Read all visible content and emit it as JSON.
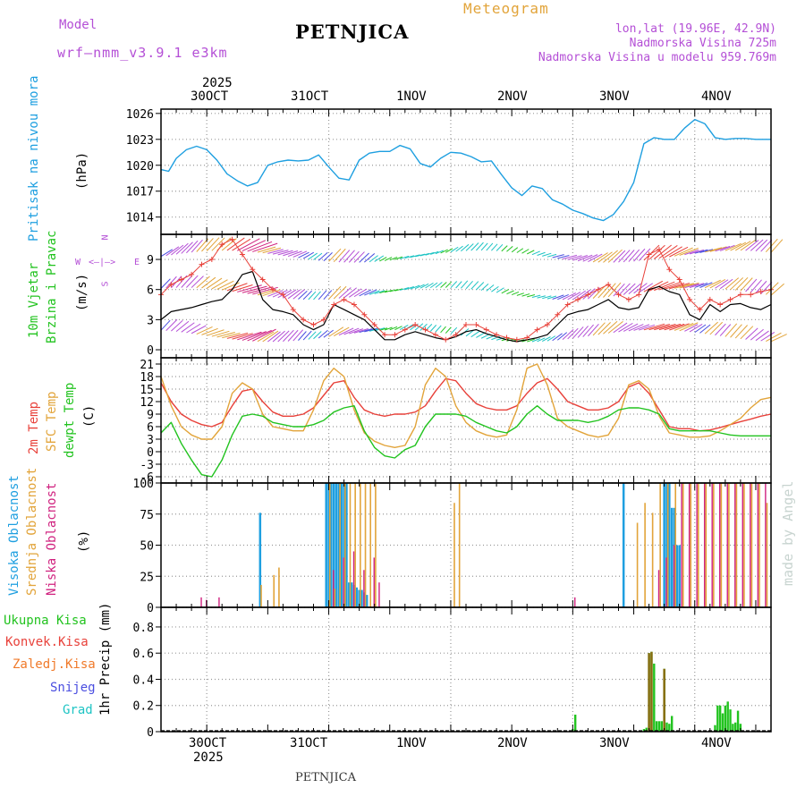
{
  "header": {
    "model_label": "Model",
    "model_name": "wrf–nmm_v3.9.1  e3km",
    "title": "PETNJICA",
    "meteogram": "Meteogram",
    "lonlat": "lon,lat (19.96E, 42.9N)",
    "elevation": "Nadmorska Visina 725m",
    "model_elevation": "Nadmorska Visina u modelu 959.769m"
  },
  "footer": {
    "station": "PETNJICA",
    "watermark": "made by Angel"
  },
  "colors": {
    "pressure": "#1e9fe0",
    "temp2m": "#e8413a",
    "sfc": "#e2a43a",
    "dew": "#22c31f",
    "wind_speed": "#000000",
    "gust": "#e8413a",
    "high_cloud": "#1e9fe0",
    "mid_cloud": "#e2a43a",
    "low_cloud": "#d0227f",
    "label_green": "#22c31f",
    "label_red": "#e8413a",
    "label_orange": "#f07a2a",
    "label_blue": "#4a4ee0",
    "label_cyan": "#1ec4c4",
    "label_purple": "#b44fd6",
    "label_magenta": "#d0227f",
    "label_gold": "#e2a43a"
  },
  "time_axis": {
    "top_year": "2025",
    "bottom_year": "2025",
    "days": [
      "30OCT",
      "31OCT",
      "1NOV",
      "2NOV",
      "3NOV",
      "4NOV"
    ]
  },
  "panel_labels": {
    "pressure": {
      "name": "Pritisak na nivou mora",
      "unit": "(hPa)"
    },
    "wind": {
      "line1": "10m Vjetar",
      "line2": "Brzina i Pravac",
      "unit": "(m/s)",
      "compass_n": "N",
      "compass_w": "W",
      "compass_e": "E",
      "compass_s": "S",
      "compass_arrow": "<–|–>"
    },
    "temp": {
      "t2m": "2m Temp",
      "sfc": "SFC Temp",
      "dew": "dewpt Temp",
      "unit": "(C)"
    },
    "cloud": {
      "high": "Visoka Oblacnost",
      "mid": "Srednja Oblacnost",
      "low": "Niska Oblacnost",
      "unit": "(%)"
    },
    "precip": {
      "total": "Ukupna Kisa",
      "conv": "Konvek.Kisa",
      "frozen": "Zaledj.Kisa",
      "snow": "Snijeg",
      "hail": "Grad",
      "unit": "1hr Precip (mm)"
    }
  },
  "chart_data": [
    {
      "type": "line",
      "name": "Mean sea level pressure",
      "ylabel": "hPa",
      "ylim": [
        1012,
        1026.5
      ],
      "yticks": [
        "1014",
        "1017",
        "1020",
        "1023",
        "1026"
      ],
      "x_hours": [
        0,
        3,
        6,
        10,
        14,
        18,
        22,
        26,
        30,
        34,
        38,
        42,
        46,
        50,
        54,
        58,
        62,
        66,
        70,
        74,
        78,
        82,
        86,
        90,
        94,
        98,
        102,
        106,
        110,
        114,
        118,
        122,
        126,
        130,
        134,
        138,
        142,
        146,
        150,
        154,
        158,
        162,
        166,
        170,
        174,
        178,
        182,
        186,
        190,
        194,
        198,
        202,
        206,
        210,
        214,
        218,
        222,
        226,
        230,
        234,
        240
      ],
      "values": [
        1019.5,
        1019.3,
        1020.8,
        1021.8,
        1022.2,
        1021.8,
        1020.6,
        1019.0,
        1018.2,
        1017.6,
        1018.0,
        1020.0,
        1020.4,
        1020.6,
        1020.5,
        1020.6,
        1021.2,
        1019.8,
        1018.5,
        1018.3,
        1020.6,
        1021.4,
        1021.6,
        1021.6,
        1022.3,
        1021.9,
        1020.2,
        1019.8,
        1020.8,
        1021.5,
        1021.4,
        1021.0,
        1020.4,
        1020.5,
        1018.9,
        1017.4,
        1016.5,
        1017.6,
        1017.3,
        1016.0,
        1015.5,
        1014.8,
        1014.4,
        1013.9,
        1013.6,
        1014.3,
        1015.8,
        1018.0,
        1022.5,
        1023.2,
        1023.0,
        1023.0,
        1024.3,
        1025.3,
        1024.8,
        1023.2,
        1023.0,
        1023.1,
        1023.1,
        1023.0,
        1023.0
      ]
    },
    {
      "type": "line",
      "name": "10m wind speed and gust",
      "ylabel": "m/s",
      "ylim": [
        -0.8,
        11.5
      ],
      "yticks": [
        "0",
        "3",
        "6",
        "9"
      ],
      "x_hours": [
        0,
        4,
        8,
        12,
        16,
        20,
        24,
        28,
        32,
        36,
        40,
        44,
        48,
        52,
        56,
        60,
        64,
        68,
        72,
        76,
        80,
        84,
        88,
        92,
        96,
        100,
        104,
        108,
        112,
        116,
        120,
        124,
        128,
        132,
        136,
        140,
        144,
        148,
        152,
        156,
        160,
        164,
        168,
        172,
        176,
        180,
        184,
        188,
        192,
        196,
        200,
        204,
        208,
        212,
        216,
        220,
        224,
        228,
        232,
        236,
        240
      ],
      "speed": [
        3.0,
        3.8,
        4.0,
        4.2,
        4.5,
        4.8,
        5.0,
        6.0,
        7.5,
        7.8,
        5.0,
        4.0,
        3.8,
        3.5,
        2.5,
        2.0,
        2.5,
        4.5,
        4.0,
        3.5,
        3.0,
        2.0,
        1.0,
        1.0,
        1.5,
        1.8,
        1.5,
        1.2,
        1.0,
        1.3,
        1.8,
        2.0,
        1.6,
        1.3,
        1.0,
        0.8,
        1.0,
        1.2,
        1.5,
        2.5,
        3.5,
        3.8,
        4.0,
        4.5,
        5.0,
        4.2,
        4.0,
        4.2,
        6.0,
        6.3,
        5.8,
        5.5,
        3.5,
        3.0,
        4.5,
        3.8,
        4.5,
        4.6,
        4.2,
        4.0,
        4.5
      ],
      "gust": [
        5.5,
        6.5,
        7.0,
        7.5,
        8.5,
        9.0,
        10.5,
        11.0,
        9.5,
        8.0,
        7.0,
        6.0,
        5.5,
        4.0,
        3.0,
        2.5,
        3.0,
        4.5,
        5.0,
        4.5,
        3.5,
        2.5,
        1.5,
        1.5,
        2.0,
        2.5,
        2.0,
        1.5,
        1.0,
        1.5,
        2.5,
        2.5,
        2.0,
        1.5,
        1.2,
        1.0,
        1.2,
        2.0,
        2.5,
        3.5,
        4.5,
        5.0,
        5.5,
        6.0,
        6.5,
        5.5,
        5.0,
        5.5,
        9.5,
        10.0,
        8.0,
        7.0,
        5.0,
        4.0,
        5.0,
        4.5,
        5.0,
        5.5,
        5.5,
        5.8,
        6.0
      ]
    },
    {
      "type": "line",
      "name": "Temperature",
      "ylabel": "C",
      "ylim": [
        -7.5,
        22.5
      ],
      "yticks": [
        "-6",
        "-3",
        "0",
        "3",
        "6",
        "9",
        "12",
        "15",
        "18",
        "21"
      ],
      "x_hours": [
        0,
        4,
        8,
        12,
        16,
        20,
        24,
        28,
        32,
        36,
        40,
        44,
        48,
        52,
        56,
        60,
        64,
        68,
        72,
        76,
        80,
        84,
        88,
        92,
        96,
        100,
        104,
        108,
        112,
        116,
        120,
        124,
        128,
        132,
        136,
        140,
        144,
        148,
        152,
        156,
        160,
        164,
        168,
        172,
        176,
        180,
        184,
        188,
        192,
        196,
        200,
        204,
        208,
        212,
        216,
        220,
        224,
        228,
        232,
        236,
        240
      ],
      "series": [
        {
          "name": "2m Temp",
          "values": [
            16.5,
            12.0,
            9.0,
            7.5,
            6.5,
            6.0,
            7.0,
            11.0,
            14.5,
            15.0,
            12.0,
            9.5,
            8.5,
            8.5,
            9.0,
            10.5,
            13.5,
            16.5,
            17.0,
            13.0,
            10.0,
            9.0,
            8.5,
            9.0,
            9.0,
            9.5,
            11.0,
            14.5,
            17.5,
            17.0,
            14.0,
            11.5,
            10.5,
            10.0,
            10.0,
            11.0,
            14.0,
            16.5,
            17.5,
            15.0,
            12.0,
            11.0,
            10.0,
            10.0,
            10.5,
            12.0,
            15.5,
            16.5,
            14.0,
            10.0,
            6.0,
            5.5,
            5.5,
            5.0,
            5.2,
            5.8,
            6.5,
            7.2,
            7.8,
            8.5,
            9.0
          ]
        },
        {
          "name": "SFC Temp",
          "values": [
            18.0,
            11.0,
            6.0,
            4.0,
            3.0,
            3.0,
            6.0,
            14.0,
            16.5,
            15.0,
            9.0,
            6.0,
            5.5,
            5.0,
            5.0,
            10.0,
            17.0,
            20.0,
            18.0,
            10.0,
            4.5,
            2.5,
            1.5,
            1.0,
            1.5,
            6.0,
            16.0,
            20.0,
            18.0,
            11.0,
            7.0,
            5.0,
            4.0,
            3.5,
            4.0,
            10.0,
            20.0,
            21.0,
            16.0,
            8.0,
            6.0,
            5.0,
            4.0,
            3.5,
            4.0,
            8.0,
            16.0,
            17.0,
            15.0,
            8.5,
            4.5,
            4.0,
            3.5,
            3.5,
            3.8,
            5.0,
            6.5,
            8.0,
            10.5,
            12.5,
            13.0
          ]
        },
        {
          "name": "dewpt Temp",
          "values": [
            4.5,
            7.0,
            2.0,
            -2.0,
            -5.5,
            -6.0,
            -2.0,
            4.0,
            8.5,
            9.0,
            8.5,
            7.0,
            6.5,
            6.0,
            6.0,
            6.5,
            7.5,
            9.5,
            10.5,
            11.0,
            5.0,
            1.0,
            -1.0,
            -1.5,
            0.5,
            1.5,
            6.0,
            9.0,
            9.0,
            9.0,
            8.5,
            7.0,
            6.0,
            5.0,
            4.5,
            6.0,
            9.0,
            11.0,
            9.0,
            7.5,
            7.5,
            7.5,
            7.0,
            7.5,
            8.5,
            10.0,
            10.5,
            10.5,
            10.0,
            9.0,
            5.5,
            5.0,
            5.0,
            5.0,
            5.0,
            4.5,
            4.0,
            3.8,
            3.8,
            3.8,
            3.8
          ]
        }
      ]
    },
    {
      "type": "bar",
      "name": "Cloud cover",
      "ylabel": "%",
      "ylim": [
        0,
        100
      ],
      "yticks": [
        "0",
        "25",
        "50",
        "75",
        "100"
      ],
      "series": [
        {
          "name": "Visoka Oblacnost",
          "hours": [
            39,
            65,
            66,
            67,
            68,
            69,
            70,
            71,
            72,
            73,
            74,
            75,
            76,
            77,
            78,
            79,
            80,
            81,
            182,
            198,
            199,
            200,
            201,
            202,
            203,
            204
          ],
          "values": [
            76,
            100,
            100,
            100,
            100,
            100,
            100,
            100,
            100,
            100,
            20,
            20,
            18,
            16,
            14,
            14,
            12,
            10,
            100,
            100,
            100,
            100,
            80,
            80,
            50,
            50
          ]
        },
        {
          "name": "Srednja Oblacnost",
          "hours": [
            39,
            44,
            46,
            66,
            68,
            70,
            72,
            74,
            76,
            78,
            80,
            82,
            84,
            115,
            117,
            187,
            190,
            193,
            196,
            199,
            202,
            205,
            208,
            211,
            214,
            217,
            220,
            223,
            226,
            229,
            232,
            235,
            238
          ],
          "values": [
            18,
            26,
            32,
            100,
            15,
            100,
            100,
            100,
            100,
            100,
            100,
            100,
            100,
            84,
            100,
            68,
            84,
            76,
            100,
            100,
            100,
            100,
            100,
            100,
            100,
            100,
            100,
            100,
            100,
            100,
            100,
            100,
            84
          ]
        },
        {
          "name": "Niska Oblacnost",
          "hours": [
            15,
            17,
            22,
            67,
            71,
            75,
            79,
            83,
            85,
            162,
            195,
            198,
            201,
            204,
            207,
            210,
            213,
            216,
            219,
            222,
            225,
            228,
            231,
            234,
            237
          ],
          "values": [
            8,
            6,
            8,
            30,
            40,
            45,
            30,
            40,
            20,
            8,
            30,
            40,
            50,
            100,
            100,
            100,
            100,
            100,
            100,
            100,
            100,
            100,
            100,
            100,
            100
          ]
        }
      ]
    },
    {
      "type": "bar",
      "name": "1hr Precipitation",
      "ylabel": "1hr Precip (mm)",
      "ylim": [
        0,
        0.95
      ],
      "yticks": [
        "0",
        "0.2",
        "0.4",
        "0.6",
        "0.8"
      ],
      "series": [
        {
          "name": "Ukupna Kisa",
          "hours": [
            161,
            162,
            163,
            190,
            191,
            192,
            193,
            194,
            195,
            196,
            197,
            198,
            199,
            200,
            201,
            202,
            203,
            204,
            205,
            218,
            219,
            220,
            221,
            222,
            223,
            224,
            225,
            226,
            227,
            228
          ],
          "values": [
            0.01,
            0.02,
            0.13,
            0.02,
            0.03,
            0.6,
            0.61,
            0.52,
            0.08,
            0.08,
            0.08,
            0.48,
            0.07,
            0.06,
            0.12,
            0.0,
            0.0,
            0.0,
            0.0,
            0.05,
            0.2,
            0.2,
            0.14,
            0.2,
            0.23,
            0.17,
            0.06,
            0.07,
            0.16,
            0.06
          ]
        },
        {
          "name": "Konvek.Kisa",
          "hours": [
            192,
            193,
            198
          ],
          "values": [
            0.6,
            0.61,
            0.48
          ]
        }
      ]
    }
  ]
}
